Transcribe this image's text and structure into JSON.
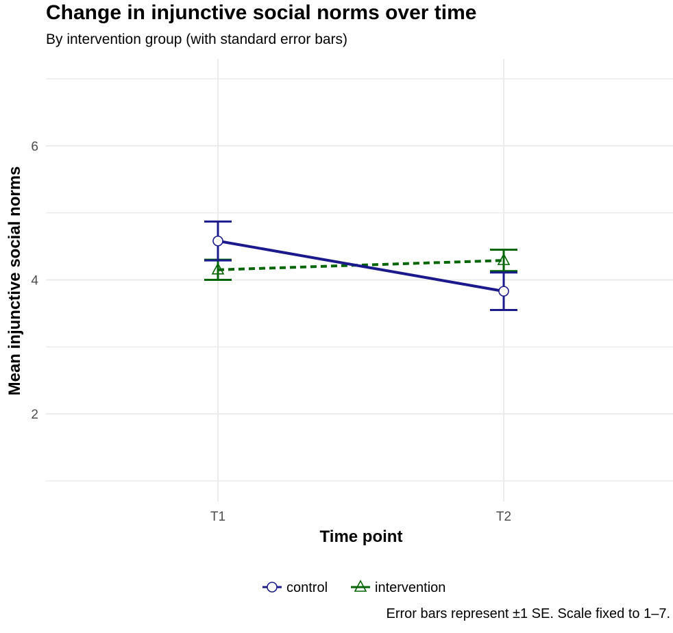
{
  "chart_data": {
    "type": "line",
    "title": "Change in injunctive social norms over time",
    "subtitle": "By intervention group (with standard error bars)",
    "xlabel": "Time point",
    "ylabel": "Mean injunctive social norms",
    "caption": "Error bars represent ±1 SE. Scale fixed to 1–7.",
    "categories": [
      "T1",
      "T2"
    ],
    "ylim": [
      1,
      7
    ],
    "yticks": [
      2,
      4,
      6
    ],
    "grid": true,
    "legend_position": "bottom",
    "series": [
      {
        "name": "control",
        "values": [
          4.58,
          3.83
        ],
        "se": [
          0.29,
          0.28
        ],
        "color": "#1a1a8c",
        "marker": "circle",
        "line": "solid"
      },
      {
        "name": "intervention",
        "values": [
          4.15,
          4.29
        ],
        "se": [
          0.15,
          0.16
        ],
        "color": "#006400",
        "marker": "triangle",
        "line": "dashed"
      }
    ]
  }
}
